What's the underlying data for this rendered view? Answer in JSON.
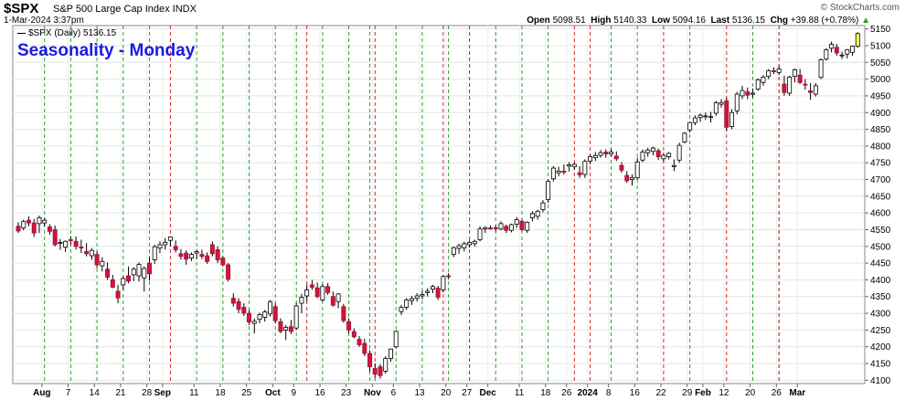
{
  "header": {
    "symbol": "$SPX",
    "description": "S&P 500 Large Cap Index INDX",
    "date_line": "1-Mar-2024 3:37pm",
    "brand": "© StockCharts.com",
    "open_label": "Open",
    "open": "5098.51",
    "high_label": "High",
    "high": "5140.33",
    "low_label": "Low",
    "low": "5094.16",
    "last_label": "Last",
    "last": "5136.15",
    "chg_label": "Chg",
    "chg": "+39.88 (+0.78%)",
    "chg_marker": "▲"
  },
  "legend": {
    "text": "$SPX (Daily) 5136.15"
  },
  "colors": {
    "up_body": "#ffffff",
    "down_body": "#d4143c",
    "wick": "#000000",
    "monday_line": "#2ca02c",
    "holiday_line": "#d62728",
    "last_highlight": "#ffff66",
    "title": "#1a1ae6"
  },
  "chart_data": {
    "type": "candlestick",
    "title": "Seasonality - Monday",
    "ylim": [
      4090,
      5160
    ],
    "y_ticks": [
      4100,
      4150,
      4200,
      4250,
      4300,
      4350,
      4400,
      4450,
      4500,
      4550,
      4600,
      4650,
      4700,
      4750,
      4800,
      4850,
      4900,
      4950,
      5000,
      5050,
      5100,
      5150
    ],
    "x_labels": [
      "Aug",
      "7",
      "14",
      "21",
      "28",
      "Sep",
      "11",
      "18",
      "25",
      "Oct",
      "9",
      "16",
      "23",
      "Nov",
      "6",
      "13",
      "20",
      "27",
      "Dec",
      "11",
      "18",
      "26",
      "2024",
      "8",
      "16",
      "22",
      "29",
      "Feb",
      "12",
      "20",
      "26",
      "Mar"
    ],
    "label_idx": [
      4.5,
      9.5,
      14.5,
      19.5,
      24.5,
      27.5,
      33.5,
      38.5,
      43.5,
      48.5,
      52.5,
      57.5,
      62.5,
      67.5,
      71.5,
      76.5,
      81.5,
      85.5,
      89.5,
      95.5,
      100.5,
      104.5,
      108.5,
      112.5,
      117.5,
      122.5,
      127.5,
      130.5,
      134.5,
      139.5,
      144.5,
      148.5
    ],
    "monday_idx": [
      5,
      10,
      15,
      20,
      25,
      34,
      39,
      44,
      49,
      53,
      58,
      63,
      67,
      72,
      77,
      82,
      86,
      91,
      96,
      101,
      113,
      118,
      128,
      140,
      145
    ],
    "holiday_idx": [
      29,
      55,
      68,
      81,
      86,
      106,
      109,
      123,
      135,
      145
    ],
    "ohlc": [
      [
        4560,
        4572,
        4540,
        4546
      ],
      [
        4555,
        4580,
        4548,
        4574
      ],
      [
        4578,
        4590,
        4560,
        4570
      ],
      [
        4570,
        4582,
        4528,
        4540
      ],
      [
        4568,
        4592,
        4540,
        4586
      ],
      [
        4570,
        4585,
        4560,
        4578
      ],
      [
        4558,
        4566,
        4535,
        4545
      ],
      [
        4550,
        4562,
        4500,
        4505
      ],
      [
        4510,
        4522,
        4490,
        4512
      ],
      [
        4498,
        4518,
        4483,
        4515
      ],
      [
        4520,
        4530,
        4505,
        4518
      ],
      [
        4515,
        4530,
        4490,
        4500
      ],
      [
        4498,
        4520,
        4480,
        4495
      ],
      [
        4485,
        4510,
        4470,
        4478
      ],
      [
        4472,
        4495,
        4460,
        4488
      ],
      [
        4476,
        4485,
        4435,
        4445
      ],
      [
        4442,
        4468,
        4425,
        4455
      ],
      [
        4432,
        4452,
        4400,
        4408
      ],
      [
        4400,
        4415,
        4375,
        4378
      ],
      [
        4366,
        4385,
        4330,
        4346
      ],
      [
        4385,
        4410,
        4370,
        4404
      ],
      [
        4412,
        4440,
        4390,
        4396
      ],
      [
        4415,
        4438,
        4396,
        4432
      ],
      [
        4412,
        4452,
        4395,
        4446
      ],
      [
        4406,
        4440,
        4365,
        4434
      ],
      [
        4450,
        4468,
        4398,
        4418
      ],
      [
        4460,
        4505,
        4448,
        4499
      ],
      [
        4495,
        4515,
        4480,
        4505
      ],
      [
        4505,
        4525,
        4490,
        4512
      ],
      [
        4518,
        4530,
        4500,
        4528
      ],
      [
        4500,
        4518,
        4482,
        4490
      ],
      [
        4478,
        4492,
        4460,
        4470
      ],
      [
        4480,
        4488,
        4445,
        4462
      ],
      [
        4465,
        4482,
        4456,
        4476
      ],
      [
        4480,
        4490,
        4462,
        4484
      ],
      [
        4476,
        4490,
        4462,
        4470
      ],
      [
        4472,
        4482,
        4448,
        4455
      ],
      [
        4505,
        4515,
        4470,
        4478
      ],
      [
        4490,
        4500,
        4450,
        4460
      ],
      [
        4465,
        4470,
        4440,
        4445
      ],
      [
        4445,
        4450,
        4395,
        4402
      ],
      [
        4345,
        4360,
        4320,
        4330
      ],
      [
        4335,
        4345,
        4300,
        4312
      ],
      [
        4318,
        4330,
        4292,
        4300
      ],
      [
        4300,
        4310,
        4265,
        4274
      ],
      [
        4270,
        4285,
        4240,
        4276
      ],
      [
        4282,
        4302,
        4270,
        4296
      ],
      [
        4288,
        4310,
        4275,
        4304
      ],
      [
        4298,
        4340,
        4290,
        4334
      ],
      [
        4320,
        4330,
        4270,
        4278
      ],
      [
        4275,
        4285,
        4240,
        4246
      ],
      [
        4250,
        4265,
        4220,
        4258
      ],
      [
        4260,
        4280,
        4238,
        4246
      ],
      [
        4256,
        4332,
        4250,
        4322
      ],
      [
        4330,
        4358,
        4300,
        4348
      ],
      [
        4352,
        4385,
        4335,
        4370
      ],
      [
        4385,
        4400,
        4370,
        4378
      ],
      [
        4376,
        4392,
        4345,
        4350
      ],
      [
        4340,
        4388,
        4335,
        4380
      ],
      [
        4380,
        4390,
        4355,
        4362
      ],
      [
        4350,
        4365,
        4320,
        4324
      ],
      [
        4335,
        4360,
        4315,
        4358
      ],
      [
        4320,
        4328,
        4272,
        4278
      ],
      [
        4275,
        4285,
        4240,
        4250
      ],
      [
        4245,
        4255,
        4225,
        4230
      ],
      [
        4222,
        4232,
        4200,
        4206
      ],
      [
        4210,
        4224,
        4172,
        4180
      ],
      [
        4180,
        4190,
        4125,
        4140
      ],
      [
        4135,
        4150,
        4108,
        4118
      ],
      [
        4140,
        4148,
        4105,
        4114
      ],
      [
        4127,
        4172,
        4120,
        4165
      ],
      [
        4165,
        4195,
        4155,
        4193
      ],
      [
        4200,
        4248,
        4195,
        4246
      ],
      [
        4305,
        4325,
        4295,
        4318
      ],
      [
        4318,
        4345,
        4310,
        4340
      ],
      [
        4338,
        4352,
        4325,
        4344
      ],
      [
        4345,
        4360,
        4335,
        4352
      ],
      [
        4352,
        4368,
        4342,
        4356
      ],
      [
        4362,
        4375,
        4350,
        4366
      ],
      [
        4372,
        4385,
        4360,
        4380
      ],
      [
        4375,
        4382,
        4340,
        4348
      ],
      [
        4370,
        4415,
        4362,
        4410
      ],
      [
        4412,
        4420,
        4402,
        4410
      ],
      [
        4476,
        4500,
        4468,
        4496
      ],
      [
        4494,
        4508,
        4478,
        4502
      ],
      [
        4496,
        4514,
        4485,
        4508
      ],
      [
        4505,
        4518,
        4496,
        4512
      ],
      [
        4508,
        4520,
        4500,
        4515
      ],
      [
        4520,
        4560,
        4515,
        4552
      ],
      [
        4552,
        4560,
        4540,
        4556
      ],
      [
        4555,
        4562,
        4550,
        4554
      ],
      [
        4556,
        4562,
        4545,
        4553
      ],
      [
        4552,
        4575,
        4548,
        4568
      ],
      [
        4560,
        4565,
        4540,
        4548
      ],
      [
        4548,
        4568,
        4542,
        4565
      ],
      [
        4566,
        4588,
        4555,
        4580
      ],
      [
        4575,
        4580,
        4545,
        4550
      ],
      [
        4548,
        4575,
        4540,
        4572
      ],
      [
        4585,
        4605,
        4575,
        4598
      ],
      [
        4590,
        4610,
        4580,
        4605
      ],
      [
        4610,
        4638,
        4602,
        4630
      ],
      [
        4640,
        4700,
        4630,
        4694
      ],
      [
        4702,
        4740,
        4694,
        4734
      ],
      [
        4720,
        4738,
        4710,
        4725
      ],
      [
        4725,
        4745,
        4715,
        4722
      ],
      [
        4740,
        4752,
        4724,
        4744
      ],
      [
        4738,
        4752,
        4728,
        4745
      ],
      [
        4720,
        4740,
        4705,
        4714
      ],
      [
        4715,
        4760,
        4705,
        4754
      ],
      [
        4755,
        4775,
        4745,
        4768
      ],
      [
        4765,
        4782,
        4755,
        4772
      ],
      [
        4772,
        4788,
        4765,
        4780
      ],
      [
        4782,
        4790,
        4765,
        4776
      ],
      [
        4776,
        4792,
        4768,
        4782
      ],
      [
        4770,
        4784,
        4755,
        4762
      ],
      [
        4742,
        4752,
        4720,
        4728
      ],
      [
        4712,
        4725,
        4690,
        4696
      ],
      [
        4700,
        4715,
        4682,
        4705
      ],
      [
        4705,
        4765,
        4700,
        4752
      ],
      [
        4758,
        4790,
        4752,
        4782
      ],
      [
        4780,
        4795,
        4768,
        4788
      ],
      [
        4784,
        4798,
        4772,
        4794
      ],
      [
        4786,
        4792,
        4758,
        4768
      ],
      [
        4762,
        4780,
        4752,
        4772
      ],
      [
        4768,
        4782,
        4760,
        4778
      ],
      [
        4738,
        4760,
        4725,
        4742
      ],
      [
        4758,
        4810,
        4750,
        4802
      ],
      [
        4812,
        4842,
        4808,
        4838
      ],
      [
        4848,
        4872,
        4840,
        4870
      ],
      [
        4870,
        4892,
        4862,
        4884
      ],
      [
        4885,
        4898,
        4872,
        4892
      ],
      [
        4888,
        4900,
        4878,
        4890
      ],
      [
        4885,
        4902,
        4870,
        4888
      ],
      [
        4898,
        4935,
        4890,
        4929
      ],
      [
        4925,
        4940,
        4915,
        4930
      ],
      [
        4935,
        4945,
        4845,
        4856
      ],
      [
        4858,
        4910,
        4850,
        4900
      ],
      [
        4905,
        4962,
        4895,
        4955
      ],
      [
        4950,
        4980,
        4940,
        4966
      ],
      [
        4962,
        4975,
        4940,
        4952
      ],
      [
        4955,
        4972,
        4945,
        4958
      ],
      [
        4970,
        5002,
        4965,
        4998
      ],
      [
        4990,
        5012,
        4980,
        5006
      ],
      [
        5008,
        5030,
        5000,
        5025
      ],
      [
        5025,
        5035,
        5015,
        5022
      ],
      [
        5020,
        5040,
        5012,
        5030
      ],
      [
        4985,
        5010,
        4950,
        4960
      ],
      [
        4958,
        5010,
        4950,
        5006
      ],
      [
        5008,
        5032,
        4990,
        5028
      ],
      [
        5012,
        5030,
        4985,
        4990
      ],
      [
        4985,
        5000,
        4968,
        4982
      ],
      [
        4965,
        4988,
        4938,
        4960
      ],
      [
        4955,
        4988,
        4948,
        4980
      ],
      [
        5005,
        5062,
        5000,
        5058
      ],
      [
        5060,
        5092,
        5055,
        5088
      ],
      [
        5092,
        5112,
        5080,
        5104
      ],
      [
        5095,
        5105,
        5070,
        5078
      ],
      [
        5070,
        5082,
        5060,
        5072
      ],
      [
        5075,
        5090,
        5062,
        5088
      ],
      [
        5080,
        5100,
        5070,
        5098
      ],
      [
        5098,
        5140,
        5094,
        5136
      ]
    ]
  }
}
